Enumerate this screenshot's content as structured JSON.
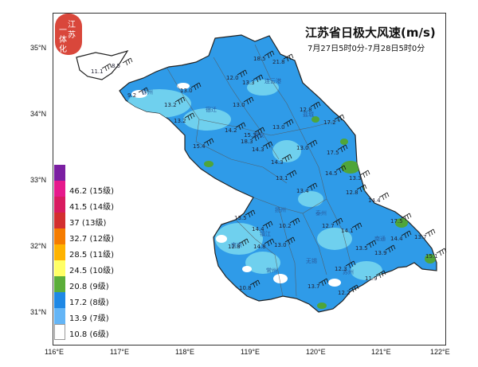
{
  "title": "江苏省日极大风速(m/s)",
  "subtitle": "7月27日5时0分-7月28日5时0分",
  "logo_chars": [
    "江",
    "苏",
    "一",
    "体",
    "化"
  ],
  "lat_labels": [
    "35°N",
    "34°N",
    "33°N",
    "32°N",
    "31°N"
  ],
  "lon_labels": [
    "116°E",
    "117°E",
    "118°E",
    "119°E",
    "120°E",
    "121°E",
    "122°E"
  ],
  "legend": [
    {
      "value": "",
      "grade": "",
      "color": "#7b1fa2"
    },
    {
      "value": "46.2",
      "grade": "(15级)",
      "color": "#e6198c"
    },
    {
      "value": "41.5",
      "grade": "(14级)",
      "color": "#d81b60"
    },
    {
      "value": "37",
      "grade": "(13级)",
      "color": "#d32f2f"
    },
    {
      "value": "32.7",
      "grade": "(12级)",
      "color": "#f57c00"
    },
    {
      "value": "28.5",
      "grade": "(11级)",
      "color": "#ffb300"
    },
    {
      "value": "24.5",
      "grade": "(10级)",
      "color": "#ffff66"
    },
    {
      "value": "20.8",
      "grade": "(9级)",
      "color": "#5bae3a"
    },
    {
      "value": "17.2",
      "grade": "(8级)",
      "color": "#1e88e5"
    },
    {
      "value": "13.9",
      "grade": "(7级)",
      "color": "#64b5f6"
    },
    {
      "value": "10.8",
      "grade": "(6级)",
      "color": "#ffffff"
    }
  ],
  "colors": {
    "province_fill": "#2f9be8",
    "light_fill": "#6fd0ee",
    "green_fill": "#4fa53a",
    "border": "#333333"
  },
  "city_names": [
    "连云港",
    "徐州",
    "宿迁",
    "淮安",
    "盐城",
    "扬州",
    "泰州",
    "南通",
    "南京",
    "镇江",
    "常州",
    "无锡",
    "苏州"
  ],
  "station_values": [
    "11.1",
    "8.5",
    "18.5",
    "21.8",
    "12.0",
    "13.3",
    "9.2",
    "13.0",
    "13.2",
    "13.0",
    "12.8",
    "13.2",
    "14.2",
    "15.3",
    "18.3",
    "13.0",
    "17.2",
    "13.0",
    "14.3",
    "15.4",
    "14.3",
    "17.5",
    "14.5",
    "13.3",
    "13.1",
    "13.4",
    "12.8",
    "14.4",
    "17.5",
    "13.5",
    "14.4",
    "10.2",
    "12.7",
    "14.1",
    "13.5",
    "13.9",
    "12.3",
    "11.9",
    "14.4",
    "13.7",
    "12.8",
    "14.8",
    "13.0",
    "13.7",
    "12.2",
    "10.8",
    "15.1"
  ]
}
